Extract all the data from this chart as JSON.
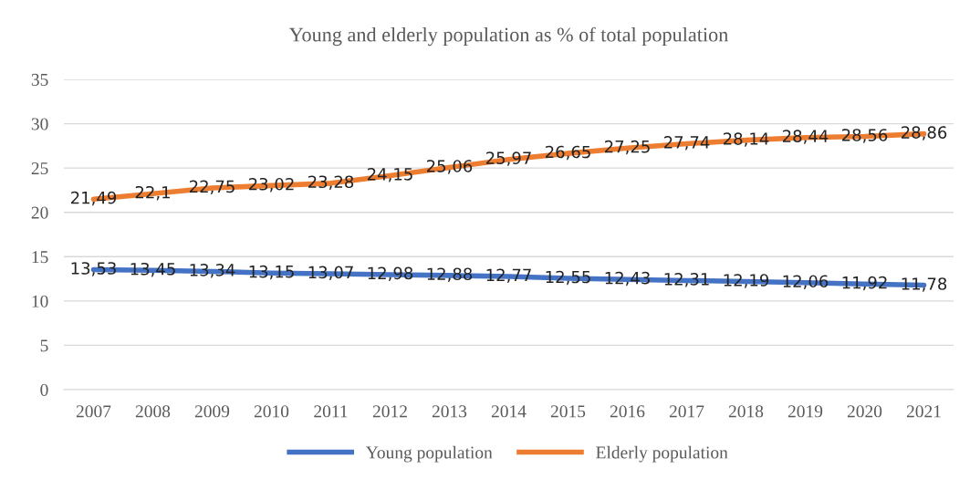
{
  "chart_data": {
    "type": "line",
    "title": "Young and elderly population as % of total population",
    "categories": [
      "2007",
      "2008",
      "2009",
      "2010",
      "2011",
      "2012",
      "2013",
      "2014",
      "2015",
      "2016",
      "2017",
      "2018",
      "2019",
      "2020",
      "2021"
    ],
    "series": [
      {
        "name": "Young population",
        "color": "#4472c4",
        "values": [
          13.53,
          13.45,
          13.34,
          13.15,
          13.07,
          12.98,
          12.88,
          12.77,
          12.55,
          12.43,
          12.31,
          12.19,
          12.06,
          11.92,
          11.78
        ],
        "value_labels": [
          "13,53",
          "13,45",
          "13,34",
          "13,15",
          "13,07",
          "12,98",
          "12,88",
          "12,77",
          "12,55",
          "12,43",
          "12,31",
          "12,19",
          "12,06",
          "11,92",
          "11,78"
        ]
      },
      {
        "name": "Elderly population",
        "color": "#ed7d31",
        "values": [
          21.49,
          22.1,
          22.75,
          23.02,
          23.28,
          24.15,
          25.06,
          25.97,
          26.65,
          27.25,
          27.74,
          28.14,
          28.44,
          28.56,
          28.86
        ],
        "value_labels": [
          "21,49",
          "22,1",
          "22,75",
          "23,02",
          "23,28",
          "24,15",
          "25,06",
          "25,97",
          "26,65",
          "27,25",
          "27,74",
          "28,14",
          "28,44",
          "28,56",
          "28,86"
        ]
      }
    ],
    "ylim": [
      0,
      35
    ],
    "yticks": [
      0,
      5,
      10,
      15,
      20,
      25,
      30,
      35
    ],
    "grid": "y",
    "legend": "bottom",
    "marker": "none",
    "line_style": "solid"
  }
}
